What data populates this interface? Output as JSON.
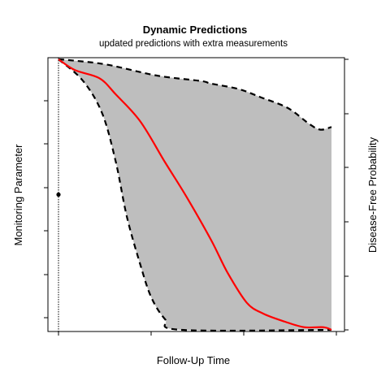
{
  "chart_data": {
    "type": "area",
    "title": "Dynamic Predictions",
    "subtitle": "updated predictions with extra measurements",
    "xlabel": "Follow-Up Time",
    "ylabel_left": "Monitoring Parameter",
    "ylabel_right": "Disease-Free Probability",
    "ylim": [
      0,
      1
    ],
    "xlim": [
      0,
      1
    ],
    "grid": false,
    "last_observation_time": 0,
    "observed_measurements": [
      {
        "x": 0,
        "y": 0.5
      }
    ],
    "series": [
      {
        "role": "upper_band",
        "line_style": "dashed",
        "color": "#000000",
        "points": [
          {
            "x": 0.0,
            "y": 1.0
          },
          {
            "x": 0.06,
            "y": 0.995
          },
          {
            "x": 0.18,
            "y": 0.98
          },
          {
            "x": 0.36,
            "y": 0.94
          },
          {
            "x": 0.52,
            "y": 0.92
          },
          {
            "x": 0.56,
            "y": 0.91
          },
          {
            "x": 0.66,
            "y": 0.89
          },
          {
            "x": 0.74,
            "y": 0.86
          },
          {
            "x": 0.84,
            "y": 0.82
          },
          {
            "x": 0.92,
            "y": 0.76
          },
          {
            "x": 0.96,
            "y": 0.74
          },
          {
            "x": 1.0,
            "y": 0.75
          }
        ]
      },
      {
        "role": "prediction",
        "line_style": "solid",
        "color": "#ff0000",
        "points": [
          {
            "x": 0.0,
            "y": 1.0
          },
          {
            "x": 0.06,
            "y": 0.96
          },
          {
            "x": 0.15,
            "y": 0.93
          },
          {
            "x": 0.21,
            "y": 0.87
          },
          {
            "x": 0.3,
            "y": 0.77
          },
          {
            "x": 0.39,
            "y": 0.62
          },
          {
            "x": 0.47,
            "y": 0.49
          },
          {
            "x": 0.56,
            "y": 0.33
          },
          {
            "x": 0.62,
            "y": 0.21
          },
          {
            "x": 0.69,
            "y": 0.1
          },
          {
            "x": 0.75,
            "y": 0.06
          },
          {
            "x": 0.83,
            "y": 0.03
          },
          {
            "x": 0.9,
            "y": 0.01
          },
          {
            "x": 0.97,
            "y": 0.01
          },
          {
            "x": 1.0,
            "y": 0.0
          }
        ]
      },
      {
        "role": "lower_band",
        "line_style": "dashed",
        "color": "#000000",
        "points": [
          {
            "x": 0.0,
            "y": 1.0
          },
          {
            "x": 0.09,
            "y": 0.92
          },
          {
            "x": 0.16,
            "y": 0.8
          },
          {
            "x": 0.21,
            "y": 0.62
          },
          {
            "x": 0.25,
            "y": 0.42
          },
          {
            "x": 0.3,
            "y": 0.24
          },
          {
            "x": 0.34,
            "y": 0.12
          },
          {
            "x": 0.39,
            "y": 0.04
          },
          {
            "x": 0.45,
            "y": 0.0
          },
          {
            "x": 1.0,
            "y": 0.0
          }
        ]
      }
    ],
    "band_fill_color": "#bebebe"
  }
}
